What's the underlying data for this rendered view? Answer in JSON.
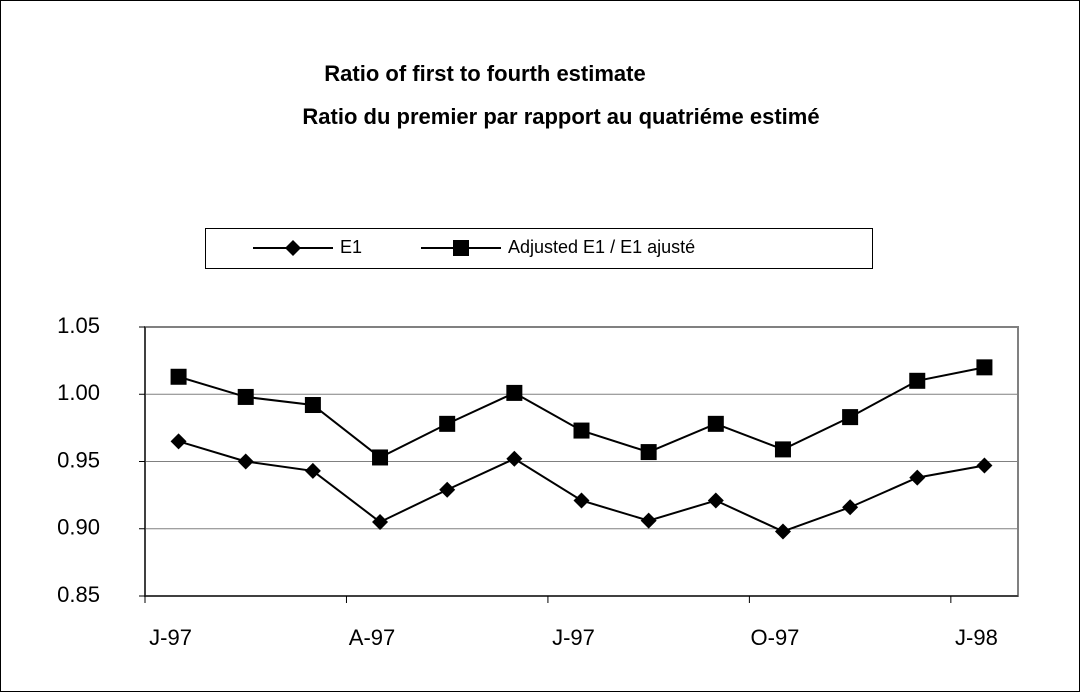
{
  "chart_data": {
    "type": "line",
    "title": "Ratio of first to fourth estimate",
    "subtitle": "Ratio du premier par rapport au quatriéme estimé",
    "categories": [
      "J-97",
      null,
      null,
      "A-97",
      null,
      null,
      "J-97",
      null,
      null,
      "O-97",
      null,
      null,
      "J-98"
    ],
    "series": [
      {
        "name": "E1",
        "color": "#000000",
        "marker": "diamond",
        "values": [
          0.965,
          0.95,
          0.943,
          0.905,
          0.929,
          0.952,
          0.921,
          0.906,
          0.921,
          0.898,
          0.916,
          0.938,
          0.947
        ]
      },
      {
        "name": "Adjusted E1 / E1 ajusté",
        "color": "#000000",
        "marker": "square",
        "values": [
          1.013,
          0.998,
          0.992,
          0.953,
          0.978,
          1.001,
          0.973,
          0.957,
          0.978,
          0.959,
          0.983,
          1.01,
          1.02
        ]
      }
    ],
    "ylim": [
      0.85,
      1.05
    ],
    "yticks": [
      0.85,
      {
        "value": 0.9,
        "label": "0.90"
      },
      0.95,
      {
        "value": 1,
        "label": "1.00"
      },
      1.05
    ],
    "grid": true,
    "legend": "top"
  }
}
